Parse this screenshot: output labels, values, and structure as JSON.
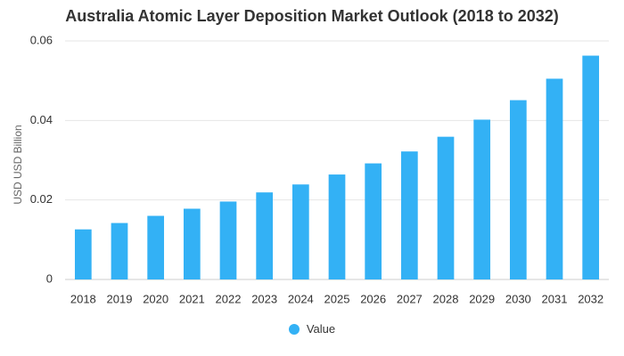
{
  "chart_data": {
    "type": "bar",
    "title": "Australia Atomic Layer Deposition Market Outlook (2018 to 2032)",
    "ylabel": "USD USD Billion",
    "xlabel": "",
    "categories": [
      "2018",
      "2019",
      "2020",
      "2021",
      "2022",
      "2023",
      "2024",
      "2025",
      "2026",
      "2027",
      "2028",
      "2029",
      "2030",
      "2031",
      "2032"
    ],
    "series": [
      {
        "name": "Value",
        "values": [
          0.0126,
          0.0142,
          0.016,
          0.0178,
          0.0196,
          0.0219,
          0.0239,
          0.0264,
          0.0292,
          0.0322,
          0.0359,
          0.0402,
          0.0451,
          0.0505,
          0.0563
        ]
      }
    ],
    "ylim": [
      0,
      0.06
    ],
    "yticks": [
      0,
      0.02,
      0.04,
      0.06
    ],
    "ytick_labels": [
      "0",
      "0.02",
      "0.04",
      "0.06"
    ],
    "grid": true,
    "legend_position": "bottom",
    "colors": {
      "bar": "#33b1f5",
      "grid": "#e6e6e6",
      "text": "#333333"
    }
  }
}
